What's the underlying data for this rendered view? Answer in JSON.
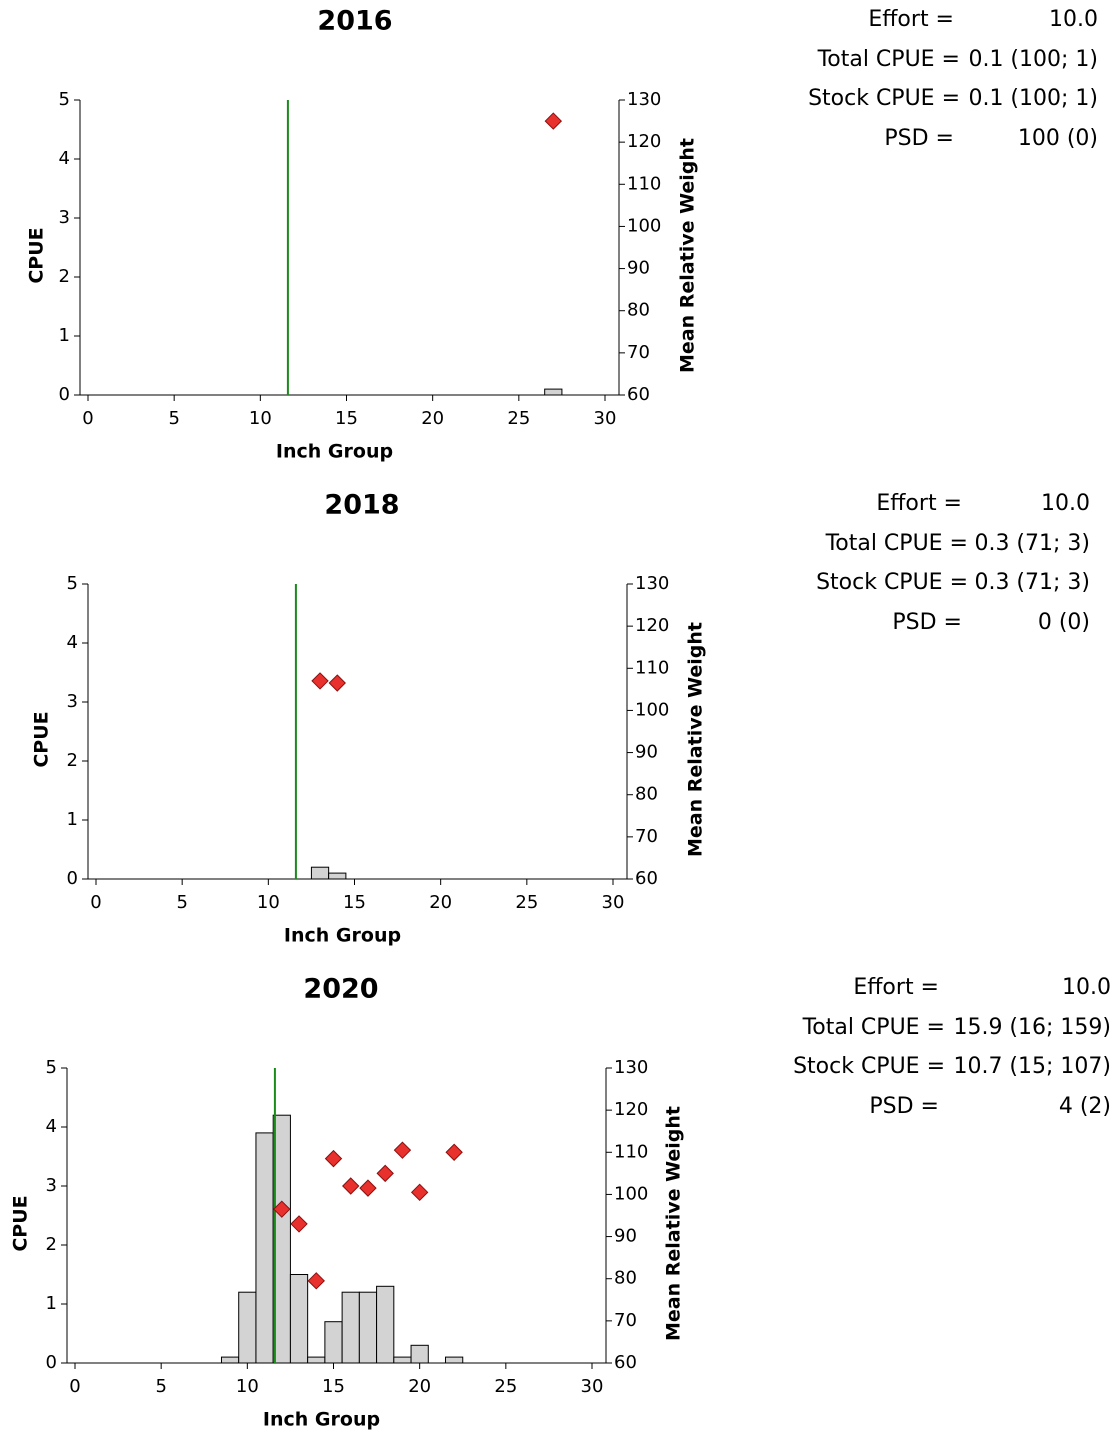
{
  "chart_data": [
    {
      "type": "bar",
      "title": "2016",
      "xlabel": "Inch Group",
      "ylabel": "CPUE",
      "y2label": "Mean Relative Weight",
      "xlim": [
        0,
        30
      ],
      "ylim": [
        0,
        5
      ],
      "y2lim": [
        60,
        130
      ],
      "x_ticks": [
        0,
        5,
        10,
        15,
        20,
        25,
        30
      ],
      "y_ticks": [
        0,
        1,
        2,
        3,
        4,
        5
      ],
      "y2_ticks": [
        60,
        70,
        80,
        90,
        100,
        110,
        120,
        130
      ],
      "reference_line_x": 11.6,
      "bars": [
        {
          "x": 27,
          "cpue": 0.1
        }
      ],
      "relative_weight_points": [
        {
          "x": 27,
          "wr": 125
        }
      ],
      "stats": [
        {
          "label": "Effort =",
          "value": "10.0"
        },
        {
          "label": "Total CPUE =",
          "value": "0.1 (100; 1)"
        },
        {
          "label": "Stock CPUE =",
          "value": "0.1 (100; 1)"
        },
        {
          "label": "PSD =",
          "value": "100 (0)"
        }
      ]
    },
    {
      "type": "bar",
      "title": "2018",
      "xlabel": "Inch Group",
      "ylabel": "CPUE",
      "y2label": "Mean Relative Weight",
      "xlim": [
        0,
        30
      ],
      "ylim": [
        0,
        5
      ],
      "y2lim": [
        60,
        130
      ],
      "x_ticks": [
        0,
        5,
        10,
        15,
        20,
        25,
        30
      ],
      "y_ticks": [
        0,
        1,
        2,
        3,
        4,
        5
      ],
      "y2_ticks": [
        60,
        70,
        80,
        90,
        100,
        110,
        120,
        130
      ],
      "reference_line_x": 11.6,
      "bars": [
        {
          "x": 13,
          "cpue": 0.2
        },
        {
          "x": 14,
          "cpue": 0.1
        }
      ],
      "relative_weight_points": [
        {
          "x": 13,
          "wr": 107
        },
        {
          "x": 14,
          "wr": 106.5
        }
      ],
      "stats": [
        {
          "label": "Effort =",
          "value": "10.0"
        },
        {
          "label": "Total CPUE =",
          "value": "0.3 (71; 3)"
        },
        {
          "label": "Stock CPUE =",
          "value": "0.3 (71; 3)"
        },
        {
          "label": "PSD =",
          "value": "0 (0)"
        }
      ]
    },
    {
      "type": "bar",
      "title": "2020",
      "xlabel": "Inch Group",
      "ylabel": "CPUE",
      "y2label": "Mean Relative Weight",
      "xlim": [
        0,
        30
      ],
      "ylim": [
        0,
        5
      ],
      "y2lim": [
        60,
        130
      ],
      "x_ticks": [
        0,
        5,
        10,
        15,
        20,
        25,
        30
      ],
      "y_ticks": [
        0,
        1,
        2,
        3,
        4,
        5
      ],
      "y2_ticks": [
        60,
        70,
        80,
        90,
        100,
        110,
        120,
        130
      ],
      "reference_line_x": 11.6,
      "bars": [
        {
          "x": 9,
          "cpue": 0.1
        },
        {
          "x": 10,
          "cpue": 1.2
        },
        {
          "x": 11,
          "cpue": 3.9
        },
        {
          "x": 12,
          "cpue": 4.2
        },
        {
          "x": 13,
          "cpue": 1.5
        },
        {
          "x": 14,
          "cpue": 0.1
        },
        {
          "x": 15,
          "cpue": 0.7
        },
        {
          "x": 16,
          "cpue": 1.2
        },
        {
          "x": 17,
          "cpue": 1.2
        },
        {
          "x": 18,
          "cpue": 1.3
        },
        {
          "x": 19,
          "cpue": 0.1
        },
        {
          "x": 20,
          "cpue": 0.3
        },
        {
          "x": 22,
          "cpue": 0.1
        }
      ],
      "relative_weight_points": [
        {
          "x": 12,
          "wr": 96.5
        },
        {
          "x": 13,
          "wr": 93
        },
        {
          "x": 14,
          "wr": 79.5
        },
        {
          "x": 15,
          "wr": 108.5
        },
        {
          "x": 16,
          "wr": 102
        },
        {
          "x": 17,
          "wr": 101.5
        },
        {
          "x": 18,
          "wr": 105
        },
        {
          "x": 19,
          "wr": 110.5
        },
        {
          "x": 20,
          "wr": 100.5
        },
        {
          "x": 22,
          "wr": 110
        }
      ],
      "stats": [
        {
          "label": "Effort =",
          "value": "10.0"
        },
        {
          "label": "Total CPUE =",
          "value": "15.9 (16; 159)"
        },
        {
          "label": "Stock CPUE =",
          "value": "10.7 (15; 107)"
        },
        {
          "label": "PSD =",
          "value": "4 (2)"
        }
      ]
    }
  ],
  "colors": {
    "bar_fill": "#d3d3d3",
    "bar_stroke": "#000000",
    "marker_fill": "#e8302c",
    "marker_stroke": "#8a1010",
    "reference_line": "#1a8a1a",
    "axis": "#000000"
  }
}
